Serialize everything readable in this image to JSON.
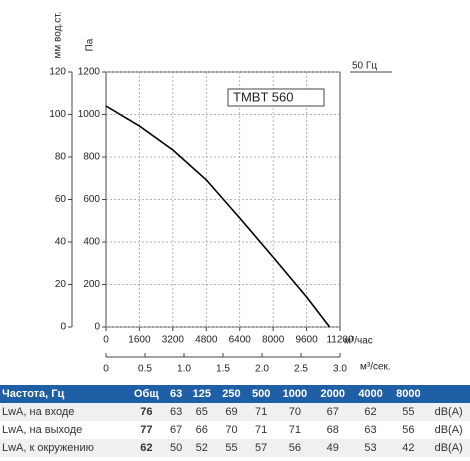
{
  "chart_data": {
    "type": "line",
    "series": [
      {
        "name": "TMBT 560",
        "color": "#000000",
        "x": [
          0,
          1600,
          3200,
          4800,
          6400,
          8000,
          9600,
          10700
        ],
        "values": [
          1040,
          946,
          833,
          692,
          513,
          329,
          141,
          0
        ]
      }
    ],
    "legend_title": "50 Гц",
    "ylabel": "Па",
    "ylim": [
      0,
      1200
    ],
    "yticks": [
      0,
      200,
      400,
      600,
      800,
      1000,
      1200
    ],
    "y2label": "мм вод.ст.",
    "y2lim": [
      0,
      120
    ],
    "y2ticks": [
      0,
      20,
      40,
      60,
      80,
      100,
      120
    ],
    "xlabel": "м³/час",
    "xlim": [
      0,
      11200
    ],
    "xticks": [
      0,
      1600,
      3200,
      4800,
      6400,
      8000,
      9600,
      11200
    ],
    "x2label": "м³/сек.",
    "x2lim": [
      0,
      3.0
    ],
    "x2ticks": [
      0,
      0.5,
      {
        "value": 1,
        "label": "1.0"
      },
      1.5,
      {
        "value": 2,
        "label": "2.0"
      },
      2.5,
      {
        "value": 3,
        "label": "3.0"
      }
    ],
    "grid": true
  },
  "table": {
    "header": [
      "Частота, Гц",
      "Общ",
      "63",
      "125",
      "250",
      "500",
      "1000",
      "2000",
      "4000",
      "8000"
    ],
    "rows": [
      [
        "LwA, на входе",
        76,
        63,
        65,
        69,
        71,
        70,
        67,
        62,
        55,
        "dB(A)"
      ],
      [
        "LwA, на выходе",
        77,
        67,
        66,
        70,
        71,
        71,
        68,
        63,
        56,
        "dB(A)"
      ],
      [
        "LwA, к окружению",
        62,
        50,
        52,
        55,
        57,
        56,
        49,
        53,
        42,
        "dB(A)"
      ]
    ]
  }
}
